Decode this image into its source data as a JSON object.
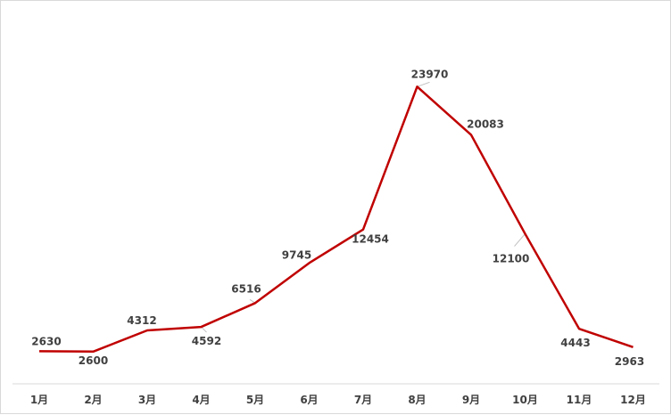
{
  "chart_data": {
    "type": "line",
    "title": "",
    "xlabel": "",
    "ylabel": "",
    "categories": [
      "1月",
      "2月",
      "3月",
      "4月",
      "5月",
      "6月",
      "7月",
      "8月",
      "9月",
      "10月",
      "11月",
      "12月"
    ],
    "series": [
      {
        "values": [
          2630,
          2600,
          4312,
          4592,
          6516,
          9745,
          12454,
          23970,
          20083,
          12100,
          4443,
          2963
        ],
        "color": "#c00000"
      }
    ],
    "data_labels": [
      "2630",
      "2600",
      "4312",
      "4592",
      "6516",
      "9745",
      "12454",
      "23970",
      "20083",
      "12100",
      "4443",
      "2963"
    ],
    "ylim": [
      0,
      30000
    ],
    "grid": false,
    "y_axis_visible": false,
    "legend": "none"
  }
}
